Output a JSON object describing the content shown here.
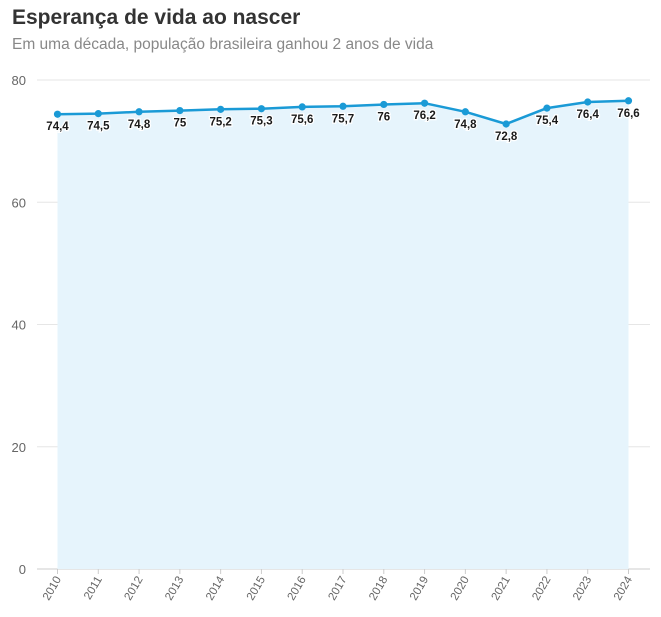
{
  "chart_data": {
    "type": "area",
    "title": "Esperança de vida ao nascer",
    "subtitle": "Em uma década, população brasileira ganhou 2 anos de vida",
    "categories": [
      "2010",
      "2011",
      "2012",
      "2013",
      "2014",
      "2015",
      "2016",
      "2017",
      "2018",
      "2019",
      "2020",
      "2021",
      "2022",
      "2023",
      "2024"
    ],
    "values": [
      74.4,
      74.5,
      74.8,
      75,
      75.2,
      75.3,
      75.6,
      75.7,
      76,
      76.2,
      74.8,
      72.8,
      75.4,
      76.4,
      76.6
    ],
    "data_labels": [
      "74,4",
      "74,5",
      "74,8",
      "75",
      "75,2",
      "75,3",
      "75,6",
      "75,7",
      "76",
      "76,2",
      "74,8",
      "72,8",
      "75,4",
      "76,4",
      "76,6"
    ],
    "y_ticks": [
      0,
      20,
      40,
      60,
      80
    ],
    "ylim": [
      0,
      80
    ],
    "xlabel": "",
    "ylabel": "",
    "grid": true,
    "legend": "none",
    "colors": {
      "line": "#1a9ad6",
      "area": "#e6f4fc",
      "grid": "#e6e6e6"
    }
  }
}
